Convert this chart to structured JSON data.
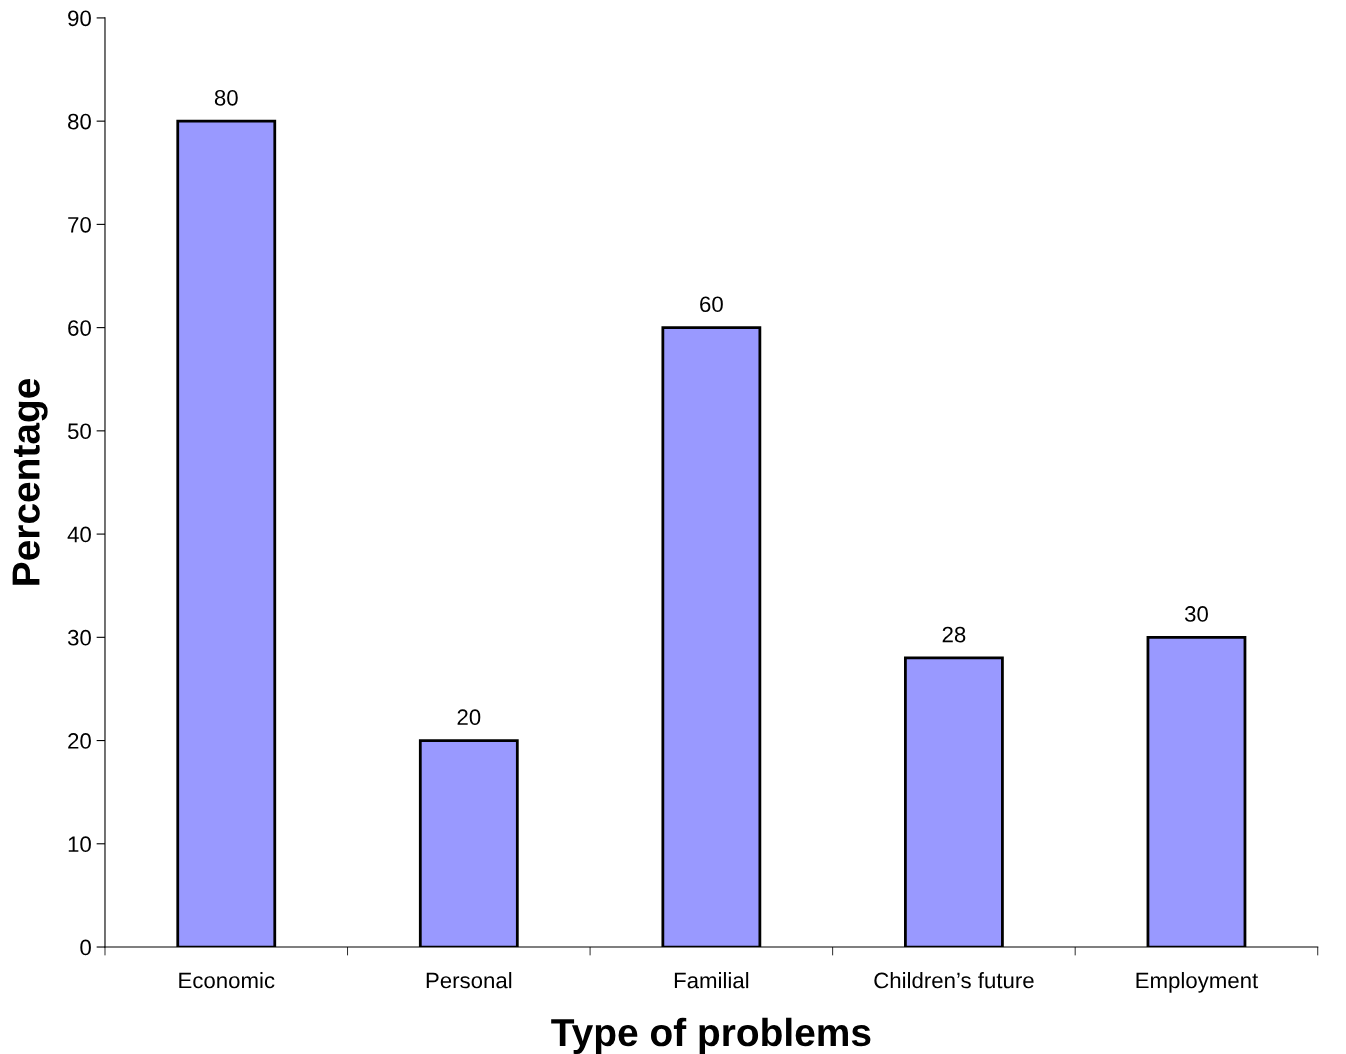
{
  "chart_data": {
    "type": "bar",
    "xlabel": "Type of problems",
    "ylabel": "Percentage",
    "categories": [
      "Economic",
      "Personal",
      "Familial",
      "Children’s future",
      "Employment"
    ],
    "values": [
      80,
      20,
      60,
      28,
      30
    ],
    "color": "#9999ff",
    "ylim": [
      0,
      90
    ],
    "yticks": [
      0,
      10,
      20,
      30,
      40,
      50,
      60,
      70,
      80,
      90
    ],
    "data_labels": true,
    "grid": false,
    "legend": false
  }
}
